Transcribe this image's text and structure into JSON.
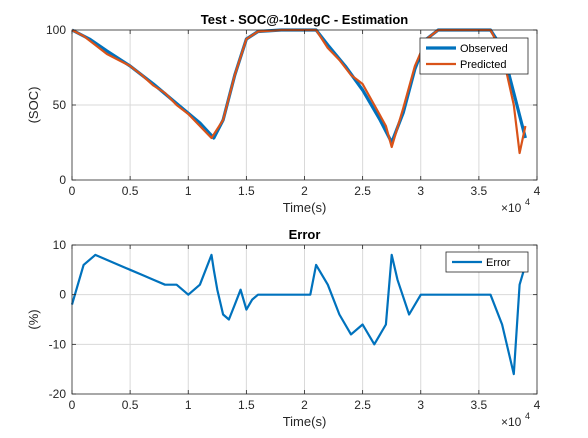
{
  "chart_data": [
    {
      "type": "line",
      "title": "Test - SOC@-10degC - Estimation",
      "xlabel": "Time(s)",
      "ylabel": "(SOC)",
      "x_multiplier_label": "×10",
      "x_multiplier_exp": "4",
      "xlim": [
        0,
        4
      ],
      "ylim": [
        0,
        100
      ],
      "xticks": [
        "0",
        "0.5",
        "1",
        "1.5",
        "2",
        "2.5",
        "3",
        "3.5",
        "4"
      ],
      "yticks": [
        "0",
        "50",
        "100"
      ],
      "grid": true,
      "legend_position": "top-right",
      "series": [
        {
          "name": "Observed",
          "color": "#0072BD",
          "x": [
            0,
            0.15,
            0.3,
            0.5,
            0.7,
            0.9,
            1.1,
            1.22,
            1.3,
            1.4,
            1.5,
            1.6,
            1.8,
            2.0,
            2.1,
            2.2,
            2.35,
            2.5,
            2.65,
            2.75,
            2.85,
            2.95,
            3.05,
            3.15,
            3.3,
            3.5,
            3.6,
            3.7,
            3.8,
            3.9
          ],
          "y": [
            100,
            94,
            86,
            76,
            64,
            51,
            38,
            28,
            40,
            70,
            94,
            99,
            100,
            100,
            100,
            90,
            76,
            60,
            40,
            25,
            45,
            74,
            94,
            100,
            100,
            100,
            100,
            88,
            58,
            28
          ]
        },
        {
          "name": "Predicted",
          "color": "#D95319",
          "x": [
            0,
            0.1,
            0.2,
            0.3,
            0.4,
            0.5,
            0.6,
            0.7,
            0.8,
            0.9,
            1.0,
            1.1,
            1.2,
            1.3,
            1.4,
            1.5,
            1.6,
            1.8,
            2.0,
            2.1,
            2.2,
            2.3,
            2.4,
            2.5,
            2.6,
            2.7,
            2.75,
            2.85,
            2.95,
            3.05,
            3.15,
            3.3,
            3.5,
            3.6,
            3.7,
            3.8,
            3.85,
            3.9
          ],
          "y": [
            100,
            96,
            90,
            84,
            80,
            76,
            70,
            63,
            58,
            50,
            44,
            36,
            28,
            40,
            70,
            94,
            99,
            100,
            100,
            100,
            88,
            80,
            70,
            64,
            50,
            36,
            22,
            48,
            76,
            94,
            100,
            100,
            100,
            100,
            85,
            50,
            18,
            36
          ]
        }
      ]
    },
    {
      "type": "line",
      "title": "Error",
      "xlabel": "Time(s)",
      "ylabel": "(%)",
      "x_multiplier_label": "×10",
      "x_multiplier_exp": "4",
      "xlim": [
        0,
        4
      ],
      "ylim": [
        -20,
        10
      ],
      "xticks": [
        "0",
        "0.5",
        "1",
        "1.5",
        "2",
        "2.5",
        "3",
        "3.5",
        "4"
      ],
      "yticks": [
        "-20",
        "-10",
        "0",
        "10"
      ],
      "grid": true,
      "legend_position": "top-right",
      "series": [
        {
          "name": "Error",
          "color": "#0072BD",
          "x": [
            0,
            0.1,
            0.2,
            0.3,
            0.4,
            0.5,
            0.6,
            0.7,
            0.8,
            0.9,
            1.0,
            1.1,
            1.2,
            1.22,
            1.25,
            1.3,
            1.35,
            1.4,
            1.45,
            1.5,
            1.55,
            1.6,
            1.7,
            1.8,
            1.9,
            2.0,
            2.05,
            2.1,
            2.2,
            2.3,
            2.4,
            2.5,
            2.6,
            2.7,
            2.75,
            2.8,
            2.9,
            3.0,
            3.1,
            3.2,
            3.3,
            3.4,
            3.5,
            3.6,
            3.7,
            3.8,
            3.85,
            3.9
          ],
          "y": [
            -2,
            6,
            8,
            7,
            6,
            5,
            4,
            3,
            2,
            2,
            0,
            2,
            8,
            5,
            1,
            -4,
            -5,
            -2,
            1,
            -3,
            -1,
            0,
            0,
            0,
            0,
            0,
            0,
            6,
            2,
            -4,
            -8,
            -6,
            -10,
            -6,
            8,
            3,
            -4,
            0,
            0,
            0,
            0,
            0,
            0,
            0,
            -6,
            -16,
            2,
            6
          ]
        }
      ]
    }
  ]
}
